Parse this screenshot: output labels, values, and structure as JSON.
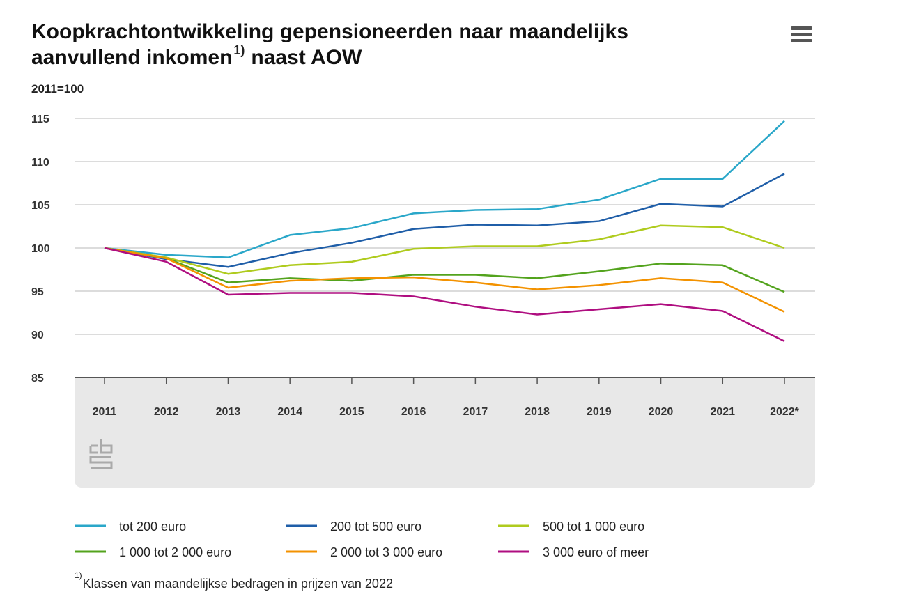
{
  "chart_data": {
    "type": "line",
    "title_lines": [
      "Koopkrachtontwikkeling gepensioneerden naar maandelijks",
      "aanvullend inkomen"
    ],
    "title_superscript": "1)",
    "title_tail": "naast AOW",
    "unit_label": "2011=100",
    "categories": [
      "2011",
      "2012",
      "2013",
      "2014",
      "2015",
      "2016",
      "2017",
      "2018",
      "2019",
      "2020",
      "2021",
      "2022*"
    ],
    "ylim": [
      85,
      115
    ],
    "yticks": [
      85,
      90,
      95,
      100,
      105,
      110,
      115
    ],
    "grid": true,
    "series": [
      {
        "name": "tot 200 euro",
        "color": "#2aa7c9",
        "values": [
          100,
          99.2,
          98.9,
          101.5,
          102.3,
          104.0,
          104.4,
          104.5,
          105.6,
          108.0,
          108.0,
          114.7
        ]
      },
      {
        "name": "200 tot 500 euro",
        "color": "#1f5ea8",
        "values": [
          100,
          98.7,
          97.8,
          99.4,
          100.6,
          102.2,
          102.7,
          102.6,
          103.1,
          105.1,
          104.8,
          108.6
        ]
      },
      {
        "name": "500 tot 1 000 euro",
        "color": "#afcb1e",
        "values": [
          100,
          98.9,
          97.0,
          98.0,
          98.4,
          99.9,
          100.2,
          100.2,
          101.0,
          102.6,
          102.4,
          100.0
        ]
      },
      {
        "name": "1 000 tot 2 000 euro",
        "color": "#53a31d",
        "values": [
          100,
          98.8,
          96.0,
          96.5,
          96.2,
          96.9,
          96.9,
          96.5,
          97.3,
          98.2,
          98.0,
          94.9
        ]
      },
      {
        "name": "2 000 tot 3 000 euro",
        "color": "#f39200",
        "values": [
          100,
          98.8,
          95.4,
          96.2,
          96.5,
          96.6,
          96.0,
          95.2,
          95.7,
          96.5,
          96.0,
          92.6
        ]
      },
      {
        "name": "3 000 euro of meer",
        "color": "#af0e80",
        "values": [
          100,
          98.4,
          94.6,
          94.8,
          94.8,
          94.4,
          93.2,
          92.3,
          92.9,
          93.5,
          92.7,
          89.2
        ]
      }
    ],
    "footnote_marker": "1)",
    "footnote": "Klassen van maandelijkse bedragen in prijzen van 2022"
  }
}
